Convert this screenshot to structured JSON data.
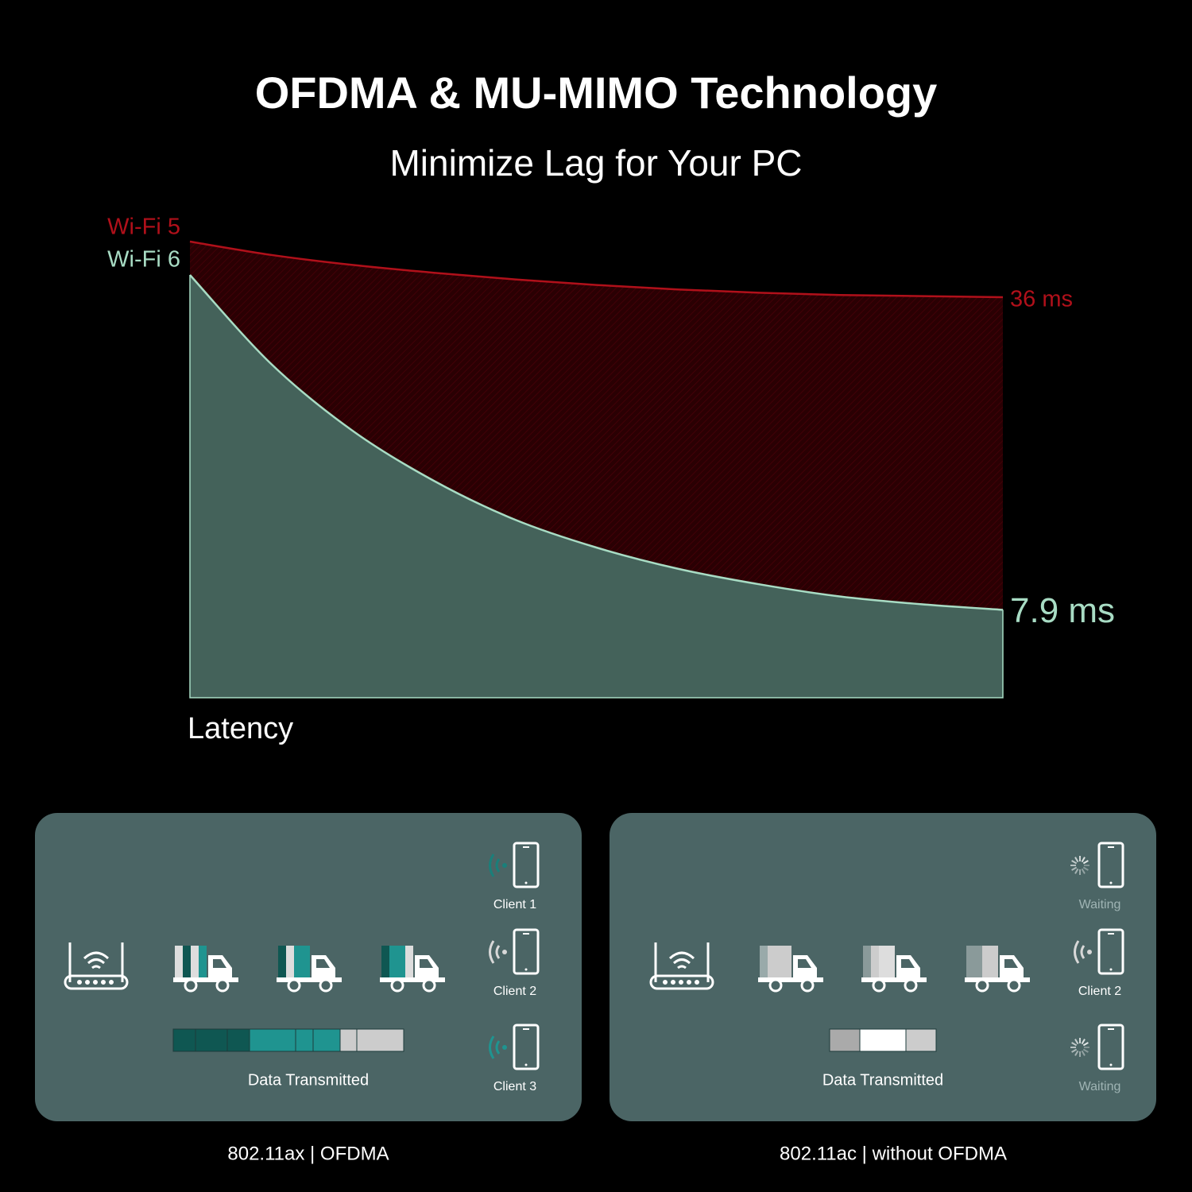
{
  "header": {
    "title": "OFDMA & MU-MIMO Technology",
    "subtitle": "Minimize Lag for Your PC"
  },
  "chart_data": {
    "type": "area",
    "xlabel": "Latency",
    "categories": [
      null,
      null,
      null,
      null,
      null,
      null,
      null,
      null,
      null,
      null,
      null
    ],
    "ylim": [
      0,
      42
    ],
    "legend": "left",
    "series": [
      {
        "name": "Wi-Fi 5",
        "color": "#b0101a",
        "fill": "#2a0003",
        "values": [
          41,
          39.8,
          38.9,
          38.2,
          37.6,
          37.1,
          36.7,
          36.4,
          36.2,
          36.1,
          36
        ],
        "value_labels": [
          null,
          null,
          null,
          null,
          null,
          null,
          null,
          null,
          null,
          null,
          "36 ms"
        ]
      },
      {
        "name": "Wi-Fi 6",
        "color": "#a8dcc4",
        "fill": "#44625a",
        "values": [
          38,
          30,
          24,
          19.5,
          16,
          13.5,
          11.6,
          10.2,
          9.1,
          8.4,
          7.9
        ],
        "value_labels": [
          null,
          null,
          null,
          null,
          null,
          null,
          null,
          null,
          null,
          null,
          "7.9 ms"
        ]
      }
    ]
  },
  "panels": [
    {
      "caption": "802.11ax | OFDMA",
      "data_label": "Data Transmitted",
      "clients": [
        "Client 1",
        "Client 2",
        "Client 3"
      ]
    },
    {
      "caption": "802.11ac | without OFDMA",
      "data_label": "Data Transmitted",
      "clients": [
        "Waiting",
        "Client 2",
        "Waiting"
      ]
    }
  ]
}
